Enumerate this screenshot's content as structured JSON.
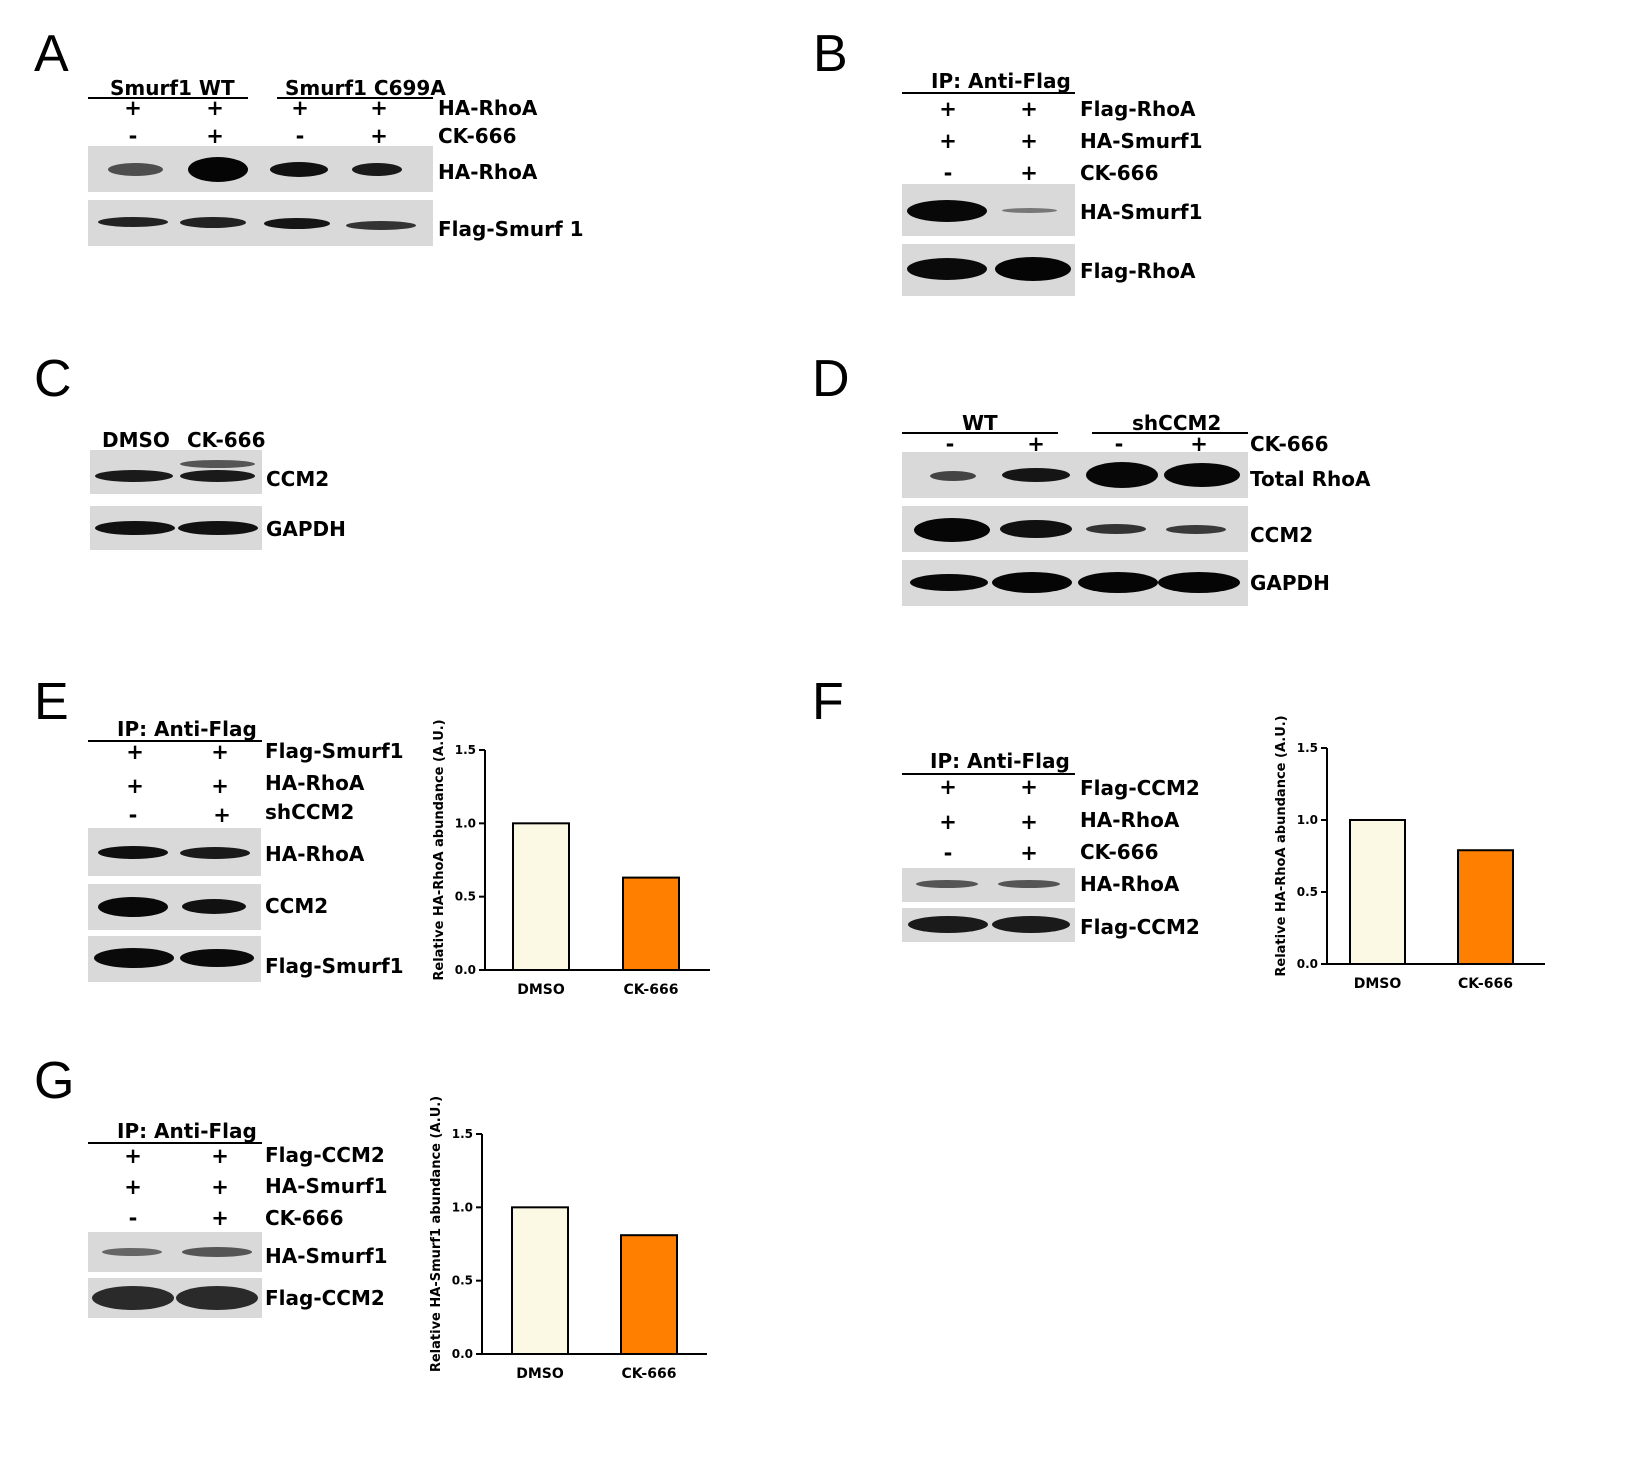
{
  "panels": {
    "A": {
      "letter": "A",
      "group1": "Smurf1 WT",
      "group2": "Smurf1 C699A",
      "rows": [
        {
          "label": "HA-RhoA",
          "signs": [
            "+",
            "+",
            "+",
            "+"
          ]
        },
        {
          "label": "CK-666",
          "signs": [
            "-",
            "+",
            "-",
            "+"
          ]
        }
      ],
      "blots": [
        "HA-RhoA",
        "Flag-Smurf 1"
      ]
    },
    "B": {
      "letter": "B",
      "header": "IP: Anti-Flag",
      "rows": [
        {
          "label": "Flag-RhoA",
          "signs": [
            "+",
            "+"
          ]
        },
        {
          "label": "HA-Smurf1",
          "signs": [
            "+",
            "+"
          ]
        },
        {
          "label": "CK-666",
          "signs": [
            "-",
            "+"
          ]
        }
      ],
      "blots": [
        "HA-Smurf1",
        "Flag-RhoA"
      ]
    },
    "C": {
      "letter": "C",
      "columns": [
        "DMSO",
        "CK-666"
      ],
      "blots": [
        "CCM2",
        "GAPDH"
      ]
    },
    "D": {
      "letter": "D",
      "group1": "WT",
      "group2": "shCCM2",
      "row": {
        "label": "CK-666",
        "signs": [
          "-",
          "+",
          "-",
          "+"
        ]
      },
      "blots": [
        "Total RhoA",
        "CCM2",
        "GAPDH"
      ]
    },
    "E": {
      "letter": "E",
      "header": "IP: Anti-Flag",
      "rows": [
        {
          "label": "Flag-Smurf1",
          "signs": [
            "+",
            "+"
          ]
        },
        {
          "label": "HA-RhoA",
          "signs": [
            "+",
            "+"
          ]
        },
        {
          "label": "shCCM2",
          "signs": [
            "-",
            "+"
          ]
        }
      ],
      "blots": [
        "HA-RhoA",
        "CCM2",
        "Flag-Smurf1"
      ]
    },
    "F": {
      "letter": "F",
      "header": "IP: Anti-Flag",
      "rows": [
        {
          "label": "Flag-CCM2",
          "signs": [
            "+",
            "+"
          ]
        },
        {
          "label": "HA-RhoA",
          "signs": [
            "+",
            "+"
          ]
        },
        {
          "label": "CK-666",
          "signs": [
            "-",
            "+"
          ]
        }
      ],
      "blots": [
        "HA-RhoA",
        "Flag-CCM2"
      ]
    },
    "G": {
      "letter": "G",
      "header": "IP: Anti-Flag",
      "rows": [
        {
          "label": "Flag-CCM2",
          "signs": [
            "+",
            "+"
          ]
        },
        {
          "label": "HA-Smurf1",
          "signs": [
            "+",
            "+"
          ]
        },
        {
          "label": "CK-666",
          "signs": [
            "-",
            "+"
          ]
        }
      ],
      "blots": [
        "HA-Smurf1",
        "Flag-CCM2"
      ]
    }
  },
  "chart_data": [
    {
      "panel": "E",
      "type": "bar",
      "categories": [
        "DMSO",
        "CK-666"
      ],
      "values": [
        1.0,
        0.63
      ],
      "ylabel": "Relative HA-RhoA abundance (A.U.)",
      "ylim": [
        0,
        1.5
      ],
      "yticks": [
        "0.0",
        "0.5",
        "1.0",
        "1.5"
      ],
      "colors": [
        "#fbf8e4",
        "#ff7f00"
      ]
    },
    {
      "panel": "F",
      "type": "bar",
      "categories": [
        "DMSO",
        "CK-666"
      ],
      "values": [
        1.0,
        0.79
      ],
      "ylabel": "Relative HA-RhoA abundance (A.U.)",
      "ylim": [
        0,
        1.5
      ],
      "yticks": [
        "0.0",
        "0.5",
        "1.0",
        "1.5"
      ],
      "colors": [
        "#fbf8e4",
        "#ff7f00"
      ]
    },
    {
      "panel": "G",
      "type": "bar",
      "categories": [
        "DMSO",
        "CK-666"
      ],
      "values": [
        1.0,
        0.81
      ],
      "ylabel": "Relative HA-Smurf1 abundance (A.U.)",
      "ylim": [
        0,
        1.5
      ],
      "yticks": [
        "0.0",
        "0.5",
        "1.0",
        "1.5"
      ],
      "colors": [
        "#fbf8e4",
        "#ff7f00"
      ]
    }
  ]
}
